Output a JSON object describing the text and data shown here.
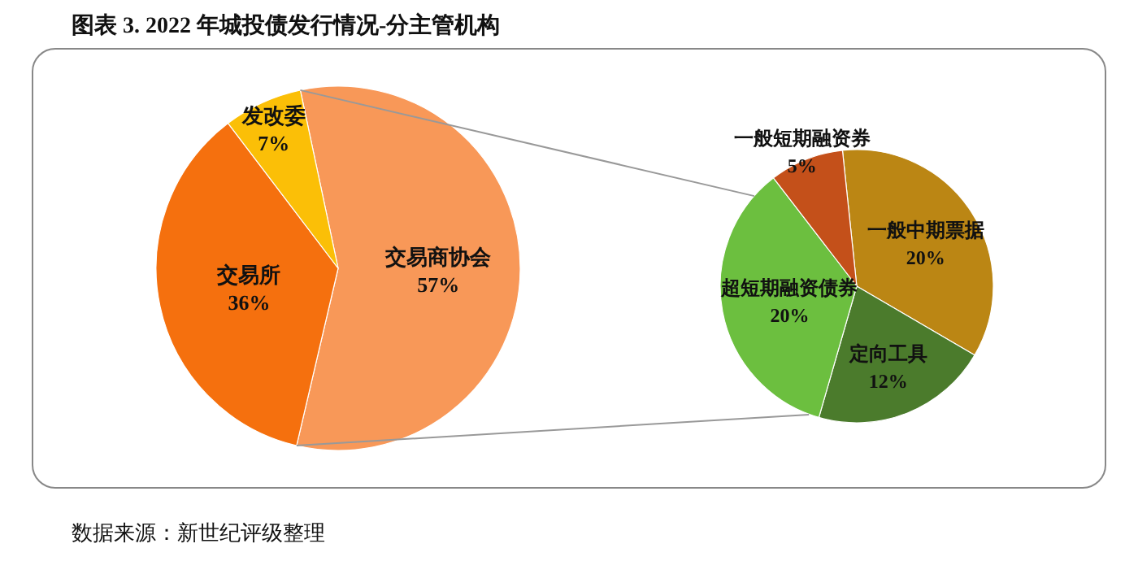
{
  "chart_data": [
    {
      "type": "pie",
      "title": "图表 3. 2022 年城投债发行情况-分主管机构",
      "categories": [
        "交易商协会",
        "交易所",
        "发改委"
      ],
      "values": [
        57,
        36,
        7
      ],
      "value_labels": [
        "57%",
        "36%",
        "7%"
      ],
      "colors": [
        "#f89858",
        "#f5700e",
        "#fbbf07"
      ],
      "annotations": [
        "数据来源：新世纪评级整理"
      ]
    },
    {
      "type": "pie",
      "categories": [
        "一般中期票据",
        "定向工具",
        "超短期融资债券",
        "一般短期融资券"
      ],
      "values": [
        20,
        12,
        20,
        5
      ],
      "value_labels": [
        "20%",
        "12%",
        "20%",
        "5%"
      ],
      "colors": [
        "#bb8614",
        "#4b7b2c",
        "#6cbf3f",
        "#c4501a"
      ]
    }
  ]
}
